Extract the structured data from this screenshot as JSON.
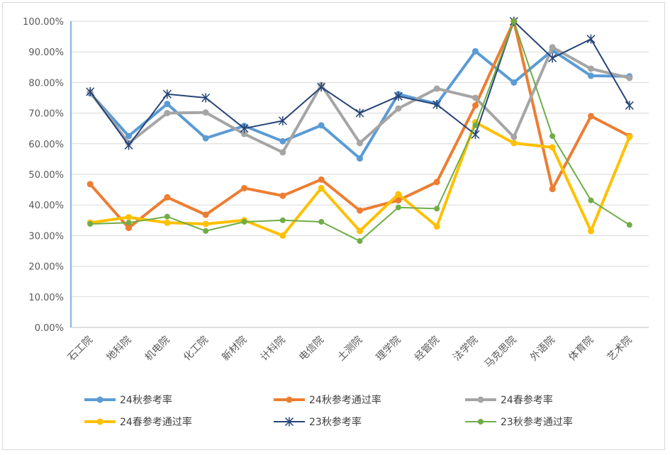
{
  "chart_data": {
    "type": "line",
    "categories": [
      "石工院",
      "地科院",
      "机电院",
      "化工院",
      "新材院",
      "计科院",
      "电信院",
      "土测院",
      "理学院",
      "经管院",
      "法学院",
      "马克思院",
      "外语院",
      "体育院",
      "艺术院"
    ],
    "ylim": [
      0,
      100
    ],
    "yticks": [
      "0.00%",
      "10.00%",
      "20.00%",
      "30.00%",
      "40.00%",
      "50.00%",
      "60.00%",
      "70.00%",
      "80.00%",
      "90.00%",
      "100.00%"
    ],
    "grid": true,
    "legend_position": "bottom",
    "series": [
      {
        "name": "24秋参考率",
        "color": "#5b9bd5",
        "marker": "circle",
        "width": 4,
        "values": [
          76.5,
          62.5,
          73.0,
          61.8,
          65.8,
          60.8,
          66.0,
          55.2,
          76.2,
          73.0,
          90.2,
          80.0,
          90.5,
          82.2,
          82.0
        ]
      },
      {
        "name": "24秋参考通过率",
        "color": "#ed7d31",
        "marker": "circle",
        "width": 4,
        "values": [
          46.8,
          32.5,
          42.5,
          36.8,
          45.5,
          43.0,
          48.3,
          38.2,
          41.5,
          47.5,
          72.5,
          100.0,
          45.2,
          69.0,
          62.5
        ]
      },
      {
        "name": "24春参考率",
        "color": "#a5a5a5",
        "marker": "circle",
        "width": 4,
        "values": [
          76.8,
          60.2,
          70.0,
          70.2,
          63.2,
          57.2,
          79.2,
          60.2,
          71.5,
          78.0,
          75.0,
          62.2,
          91.5,
          84.5,
          81.5
        ]
      },
      {
        "name": "24春参考通过率",
        "color": "#ffc000",
        "marker": "circle",
        "width": 4,
        "values": [
          34.2,
          36.0,
          34.2,
          33.8,
          35.0,
          30.0,
          45.5,
          31.5,
          43.5,
          33.0,
          67.0,
          60.2,
          58.8,
          31.5,
          62.2
        ]
      },
      {
        "name": "23秋参考率",
        "color": "#264478",
        "marker": "star",
        "width": 2,
        "values": [
          77.0,
          59.5,
          76.2,
          75.0,
          65.0,
          67.5,
          78.5,
          70.0,
          75.5,
          72.8,
          63.0,
          100.0,
          88.0,
          94.2,
          72.5
        ]
      },
      {
        "name": "23秋参考通过率",
        "color": "#70ad47",
        "marker": "circle",
        "width": 2,
        "values": [
          33.8,
          34.2,
          36.2,
          31.5,
          34.5,
          35.0,
          34.5,
          28.2,
          39.2,
          38.8,
          66.0,
          100.0,
          62.5,
          41.5,
          33.5
        ]
      }
    ]
  }
}
